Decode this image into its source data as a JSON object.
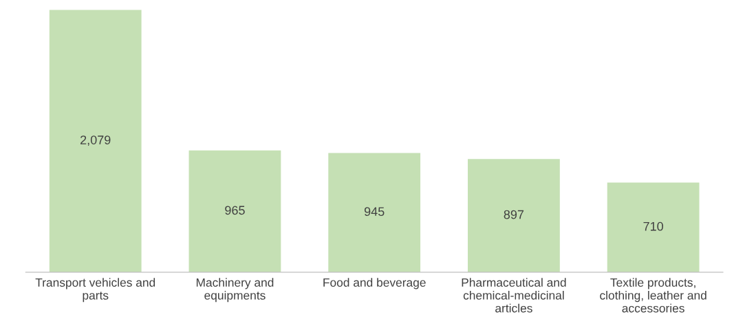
{
  "chart_data": {
    "type": "bar",
    "categories": [
      "Transport vehicles and\nparts",
      "Machinery and\nequipments",
      "Food and beverage",
      "Pharmaceutical and\nchemical-medicinal\narticles",
      "Textile products,\nclothing, leather and\naccessories"
    ],
    "values": [
      2079,
      965,
      945,
      897,
      710
    ],
    "value_labels": [
      "2,079",
      "965",
      "945",
      "897",
      "710"
    ],
    "color": "#c5e0b4",
    "grid": false,
    "legend": false
  }
}
